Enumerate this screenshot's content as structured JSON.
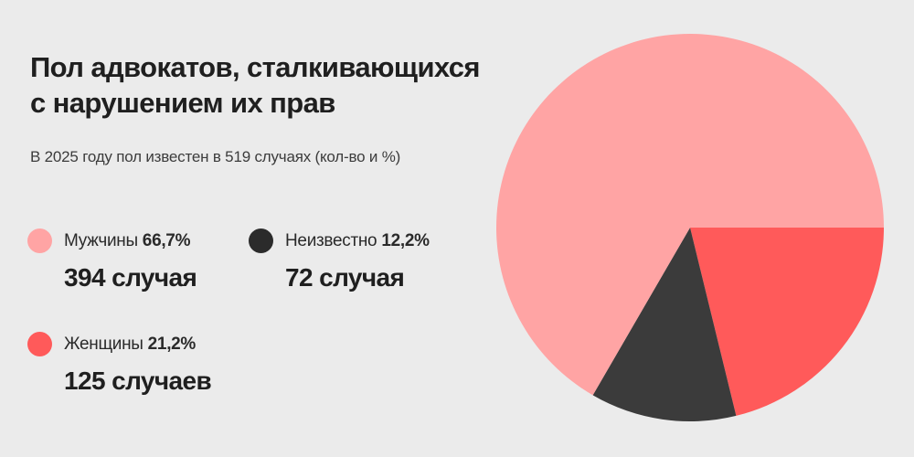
{
  "header": {
    "title_line1": "Пол адвокатов, сталкивающихся",
    "title_line2": "с нарушением их прав",
    "subtitle": "В 2025 году пол известен в 519 случаях (кол-во и %)"
  },
  "colors": {
    "background": "#ebebeb",
    "title_text": "#1f1f1f",
    "subtitle_text": "#3c3c3c",
    "pink": "#ffa4a4",
    "red": "#ff5a5a",
    "dark_slice": "#3b3b3b",
    "dark_dot": "#2b2b2b"
  },
  "legend": {
    "items": [
      {
        "name": "Мужчины",
        "percent": "66,7%",
        "count": "394 случая",
        "dot_color": "#ffa4a4"
      },
      {
        "name": "Неизвестно",
        "percent": "12,2%",
        "count": "72 случая",
        "dot_color": "#2b2b2b"
      },
      {
        "name": "Женщины",
        "percent": "21,2%",
        "count": "125 случаев",
        "dot_color": "#ff5a5a"
      }
    ]
  },
  "chart_data": {
    "type": "pie",
    "title": "Пол адвокатов, сталкивающихся с нарушением их прав",
    "subtitle": "В 2025 году пол известен в 519 случаях (кол-во и %)",
    "year": 2025,
    "total_known_cases": 519,
    "slices": [
      {
        "label": "Мужчины",
        "percent": 66.7,
        "count": 394,
        "color": "#ffa4a4"
      },
      {
        "label": "Женщины",
        "percent": 21.2,
        "count": 125,
        "color": "#ff5a5a"
      },
      {
        "label": "Неизвестно",
        "percent": 12.2,
        "count": 72,
        "color": "#3b3b3b"
      }
    ],
    "layout": {
      "start_angle_deg": 0,
      "direction": "clockwise",
      "draw_order": [
        "Женщины",
        "Неизвестно",
        "Мужчины"
      ],
      "legend_position": "left",
      "labels_on_pie": false
    }
  }
}
